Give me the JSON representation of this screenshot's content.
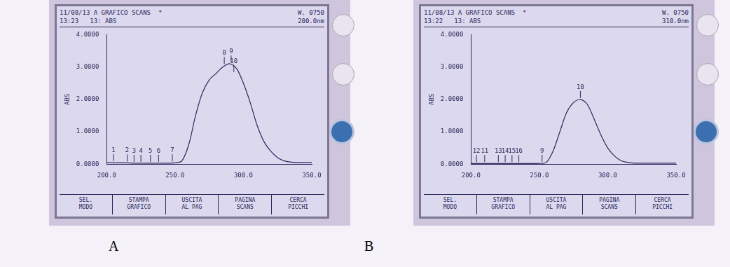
{
  "chart_data": [
    {
      "type": "line",
      "title": "A",
      "header": [
        "11/08/13 A GRAFICO SCANS  *",
        "13:23   13: ABS"
      ],
      "header_right": [
        "W. 0750",
        "200.0nm"
      ],
      "softkeys": [
        "SEL.\nMODO",
        "STAMPA\nGRAFICO",
        "USCITA\nAL PAG",
        "PAGINA\nSCANS",
        "CERCA\nPICCHI"
      ],
      "y_label": "ABS",
      "x": [
        200,
        205,
        210,
        215,
        220,
        225,
        230,
        235,
        240,
        245,
        250,
        255,
        260,
        265,
        270,
        275,
        280,
        285,
        290,
        295,
        300,
        305,
        310,
        315,
        320,
        325,
        330,
        335,
        340,
        345,
        350
      ],
      "values": [
        0.05,
        0.04,
        0.04,
        0.04,
        0.03,
        0.03,
        0.03,
        0.03,
        0.03,
        0.03,
        0.04,
        0.1,
        0.6,
        1.5,
        2.2,
        2.6,
        2.8,
        3.0,
        3.1,
        2.95,
        2.5,
        1.9,
        1.2,
        0.7,
        0.4,
        0.2,
        0.1,
        0.06,
        0.05,
        0.05,
        0.05
      ],
      "color": "#2b2a5c",
      "xlim": [
        200,
        350
      ],
      "xticks": [
        {
          "value": 200,
          "label": "200.0"
        },
        {
          "value": 250,
          "label": "250.0"
        },
        {
          "value": 300,
          "label": "300.0"
        },
        {
          "value": 350,
          "label": "350.0"
        }
      ],
      "ylim": [
        0,
        4
      ],
      "yticks": [
        {
          "value": 0,
          "label": "0.0000"
        },
        {
          "value": 1,
          "label": "1.0000"
        },
        {
          "value": 2,
          "label": "2.0000"
        },
        {
          "value": 3,
          "label": "3.0000"
        },
        {
          "value": 4,
          "label": "4.0000"
        }
      ],
      "grid": false,
      "annotations": [
        {
          "text": "1",
          "x": 205,
          "y": 0.05
        },
        {
          "text": "2",
          "x": 215,
          "y": 0.04
        },
        {
          "text": "3",
          "x": 220,
          "y": 0.03
        },
        {
          "text": "4",
          "x": 225,
          "y": 0.03
        },
        {
          "text": "5",
          "x": 232,
          "y": 0.03
        },
        {
          "text": "6",
          "x": 238,
          "y": 0.03
        },
        {
          "text": "7",
          "x": 248,
          "y": 0.04
        },
        {
          "text": "8",
          "x": 286,
          "y": 3.05
        },
        {
          "text": "9",
          "x": 291,
          "y": 3.1
        },
        {
          "text": "10",
          "x": 293,
          "y": 2.8
        }
      ]
    },
    {
      "type": "line",
      "title": "B",
      "header": [
        "11/08/13 A GRAFICO SCANS  *",
        "13:22   13: ABS"
      ],
      "header_right": [
        "W. 0750",
        "310.0nm"
      ],
      "softkeys": [
        "SEL.\nMODO",
        "STAMPA\nGRAFICO",
        "USCITA\nAL PAG",
        "PAGINA\nSCANS",
        "CERCA\nPICCHI"
      ],
      "y_label": "ABS",
      "x": [
        200,
        205,
        210,
        215,
        220,
        225,
        230,
        235,
        240,
        245,
        250,
        255,
        260,
        265,
        270,
        275,
        280,
        285,
        290,
        295,
        300,
        305,
        310,
        315,
        320,
        325,
        330,
        335,
        340,
        345,
        350
      ],
      "values": [
        0.02,
        0.02,
        0.02,
        0.02,
        0.02,
        0.02,
        0.02,
        0.02,
        0.02,
        0.02,
        0.02,
        0.05,
        0.4,
        1.0,
        1.6,
        1.9,
        2.0,
        1.85,
        1.4,
        0.9,
        0.5,
        0.25,
        0.1,
        0.05,
        0.03,
        0.03,
        0.03,
        0.03,
        0.03,
        0.03,
        0.03
      ],
      "color": "#2b2a5c",
      "xlim": [
        200,
        350
      ],
      "xticks": [
        {
          "value": 200,
          "label": "200.0"
        },
        {
          "value": 250,
          "label": "250.0"
        },
        {
          "value": 300,
          "label": "300.0"
        },
        {
          "value": 350,
          "label": "350.0"
        }
      ],
      "ylim": [
        0,
        4
      ],
      "yticks": [
        {
          "value": 0,
          "label": "0.0000"
        },
        {
          "value": 1,
          "label": "1.0000"
        },
        {
          "value": 2,
          "label": "2.0000"
        },
        {
          "value": 3,
          "label": "3.0000"
        },
        {
          "value": 4,
          "label": "4.0000"
        }
      ],
      "grid": false,
      "annotations": [
        {
          "text": "12",
          "x": 204,
          "y": 0.02
        },
        {
          "text": "11",
          "x": 210,
          "y": 0.02
        },
        {
          "text": "13",
          "x": 220,
          "y": 0.02
        },
        {
          "text": "14",
          "x": 225,
          "y": 0.02
        },
        {
          "text": "15",
          "x": 230,
          "y": 0.02
        },
        {
          "text": "16",
          "x": 235,
          "y": 0.02
        },
        {
          "text": "9",
          "x": 252,
          "y": 0.03
        },
        {
          "text": "10",
          "x": 280,
          "y": 2.0
        }
      ]
    }
  ]
}
